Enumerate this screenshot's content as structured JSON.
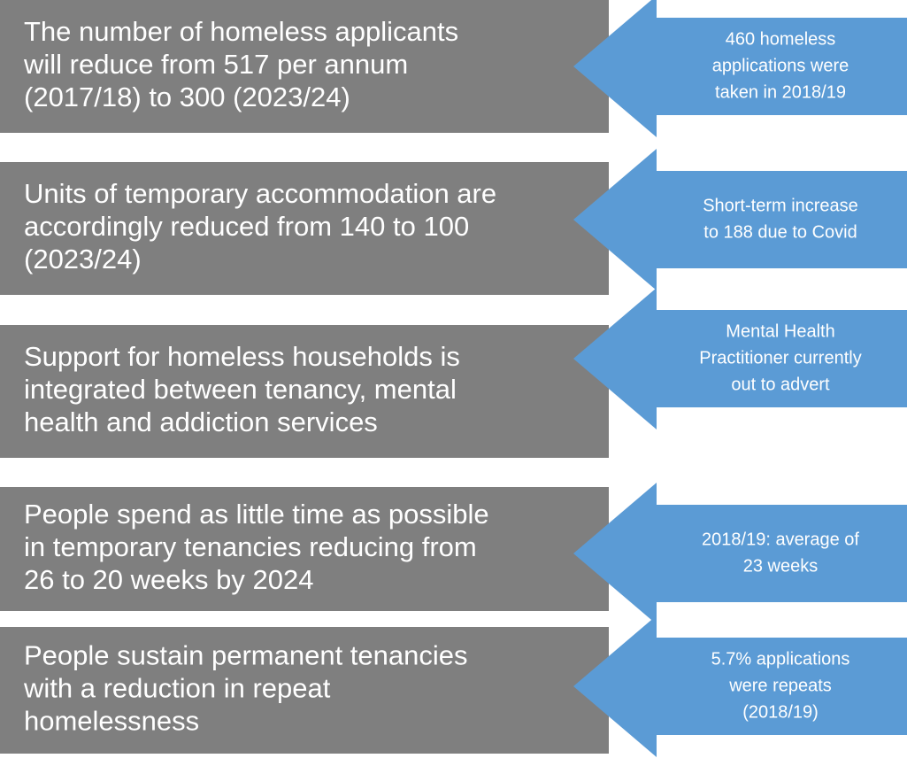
{
  "rows": [
    {
      "target": {
        "lines": [
          "The number of homeless applicants",
          "will reduce from 517 per annum",
          "(2017/18) to 300 (2023/24)"
        ]
      },
      "status": {
        "lines": [
          "460 homeless",
          "applications were",
          "taken in 2018/19"
        ]
      }
    },
    {
      "target": {
        "lines": [
          "Units of temporary accommodation are",
          "accordingly reduced from 140 to 100",
          "(2023/24)"
        ]
      },
      "status": {
        "lines": [
          "Short-term increase",
          "to 188 due to Covid"
        ]
      }
    },
    {
      "target": {
        "lines": [
          "Support for homeless households is",
          "integrated between tenancy, mental",
          "health and addiction services"
        ]
      },
      "status": {
        "lines": [
          "Mental Health",
          "Practitioner currently",
          "out to advert"
        ]
      }
    },
    {
      "target": {
        "lines": [
          "People spend as little time as possible",
          "in temporary tenancies reducing from",
          "26 to 20 weeks by 2024"
        ]
      },
      "status": {
        "lines": [
          "2018/19: average of",
          "23 weeks"
        ]
      }
    },
    {
      "target": {
        "lines": [
          "People sustain permanent tenancies",
          "with a reduction in repeat",
          "homelessness"
        ]
      },
      "status": {
        "lines": [
          "5.7% applications",
          "were repeats",
          "(2018/19)"
        ]
      }
    }
  ]
}
